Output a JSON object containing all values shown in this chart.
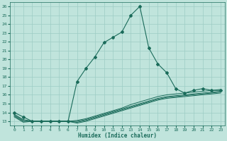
{
  "xlabel": "Humidex (Indice chaleur)",
  "ylabel": "",
  "bg_color": "#c0e4dc",
  "line_color": "#1a6b5a",
  "grid_color": "#9dcdc4",
  "xlim": [
    -0.5,
    23.5
  ],
  "ylim": [
    12.5,
    26.5
  ],
  "yticks": [
    13,
    14,
    15,
    16,
    17,
    18,
    19,
    20,
    21,
    22,
    23,
    24,
    25,
    26
  ],
  "xticks": [
    0,
    1,
    2,
    3,
    4,
    5,
    6,
    7,
    8,
    9,
    10,
    11,
    12,
    13,
    14,
    15,
    16,
    17,
    18,
    19,
    20,
    21,
    22,
    23
  ],
  "series": [
    {
      "x": [
        0,
        1,
        2,
        3,
        4,
        5,
        6,
        7,
        8,
        9,
        10,
        11,
        12,
        13,
        14,
        15,
        16,
        17,
        18,
        19,
        20,
        21,
        22,
        23
      ],
      "y": [
        14,
        13.5,
        13,
        13,
        13,
        13,
        13,
        17.5,
        19,
        20.3,
        21.9,
        22.5,
        23.1,
        25,
        26,
        21.3,
        19.5,
        18.5,
        16.7,
        16.2,
        16.5,
        16.7,
        16.5,
        16.5
      ],
      "has_markers": true
    },
    {
      "x": [
        0,
        1,
        2,
        3,
        4,
        5,
        6,
        7,
        8,
        9,
        10,
        11,
        12,
        13,
        14,
        15,
        16,
        17,
        18,
        19,
        20,
        21,
        22,
        23
      ],
      "y": [
        13.8,
        13.2,
        13.0,
        13.0,
        13.0,
        13.0,
        13.0,
        13.1,
        13.3,
        13.6,
        13.9,
        14.2,
        14.5,
        14.9,
        15.2,
        15.5,
        15.8,
        16.0,
        16.1,
        16.2,
        16.3,
        16.4,
        16.5,
        16.6
      ],
      "has_markers": false
    },
    {
      "x": [
        0,
        1,
        2,
        3,
        4,
        5,
        6,
        7,
        8,
        9,
        10,
        11,
        12,
        13,
        14,
        15,
        16,
        17,
        18,
        19,
        20,
        21,
        22,
        23
      ],
      "y": [
        13.7,
        13.1,
        13.0,
        13.0,
        13.0,
        13.0,
        13.0,
        13.0,
        13.2,
        13.5,
        13.8,
        14.1,
        14.4,
        14.7,
        15.0,
        15.3,
        15.6,
        15.8,
        15.9,
        16.0,
        16.1,
        16.2,
        16.3,
        16.4
      ],
      "has_markers": false
    },
    {
      "x": [
        0,
        1,
        2,
        3,
        4,
        5,
        6,
        7,
        8,
        9,
        10,
        11,
        12,
        13,
        14,
        15,
        16,
        17,
        18,
        19,
        20,
        21,
        22,
        23
      ],
      "y": [
        13.6,
        13.0,
        13.0,
        13.0,
        13.0,
        13.0,
        13.0,
        12.9,
        13.1,
        13.4,
        13.7,
        14.0,
        14.3,
        14.6,
        14.9,
        15.2,
        15.5,
        15.7,
        15.8,
        15.9,
        16.0,
        16.1,
        16.2,
        16.3
      ],
      "has_markers": false
    },
    {
      "x": [
        0,
        1,
        2,
        3,
        4,
        5,
        6,
        7,
        8,
        9,
        10,
        11,
        12,
        13,
        14,
        15,
        16,
        17,
        18,
        19,
        20,
        21,
        22,
        23
      ],
      "y": [
        13.5,
        12.9,
        13.0,
        13.0,
        13.0,
        13.0,
        13.0,
        12.8,
        13.0,
        13.3,
        13.6,
        13.9,
        14.2,
        14.5,
        14.8,
        15.1,
        15.4,
        15.6,
        15.7,
        15.8,
        15.9,
        16.0,
        16.1,
        16.2
      ],
      "has_markers": false
    }
  ]
}
